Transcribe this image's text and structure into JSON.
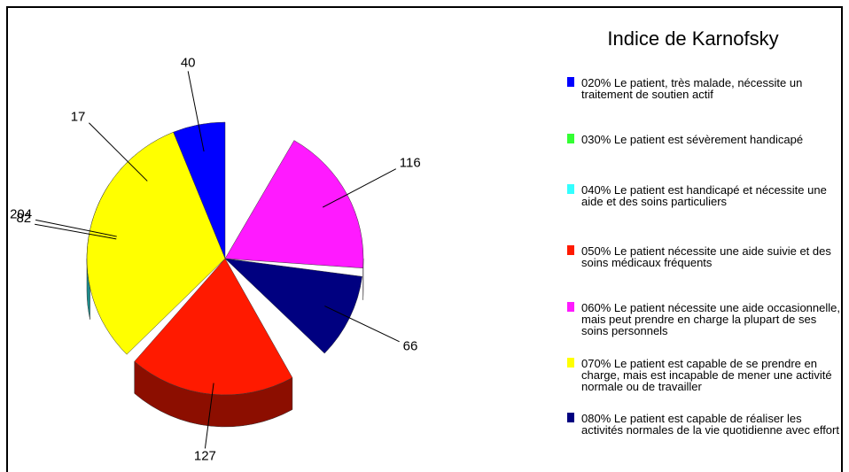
{
  "chart_data": {
    "type": "pie",
    "title": "Indice de Karnofsky",
    "categories": [
      "020% Le patient, très malade, nécessite un traitement de soutien actif",
      "030% Le patient est sévèrement handicapé",
      "040% Le patient est handicapé et nécessite une aide et des soins particuliers",
      "050% Le patient nécessite une aide suivie et des soins médicaux fréquents",
      "060% Le patient nécessite une aide occasionnelle, mais peut prendre en charge la plupart de ses soins personnels",
      "070% Le patient est capable de se prendre en charge, mais est incapable de mener une activité normale ou de travailler",
      "080% Le patient est capable de réaliser les activités normales de la vie quotidienne avec effort"
    ],
    "values": [
      40,
      17,
      82,
      127,
      116,
      204,
      66
    ],
    "colors": [
      "#0000ff",
      "#33ff33",
      "#33ffff",
      "#ff1a00",
      "#ff1aff",
      "#ffff00",
      "#000080"
    ],
    "legend": "right"
  }
}
